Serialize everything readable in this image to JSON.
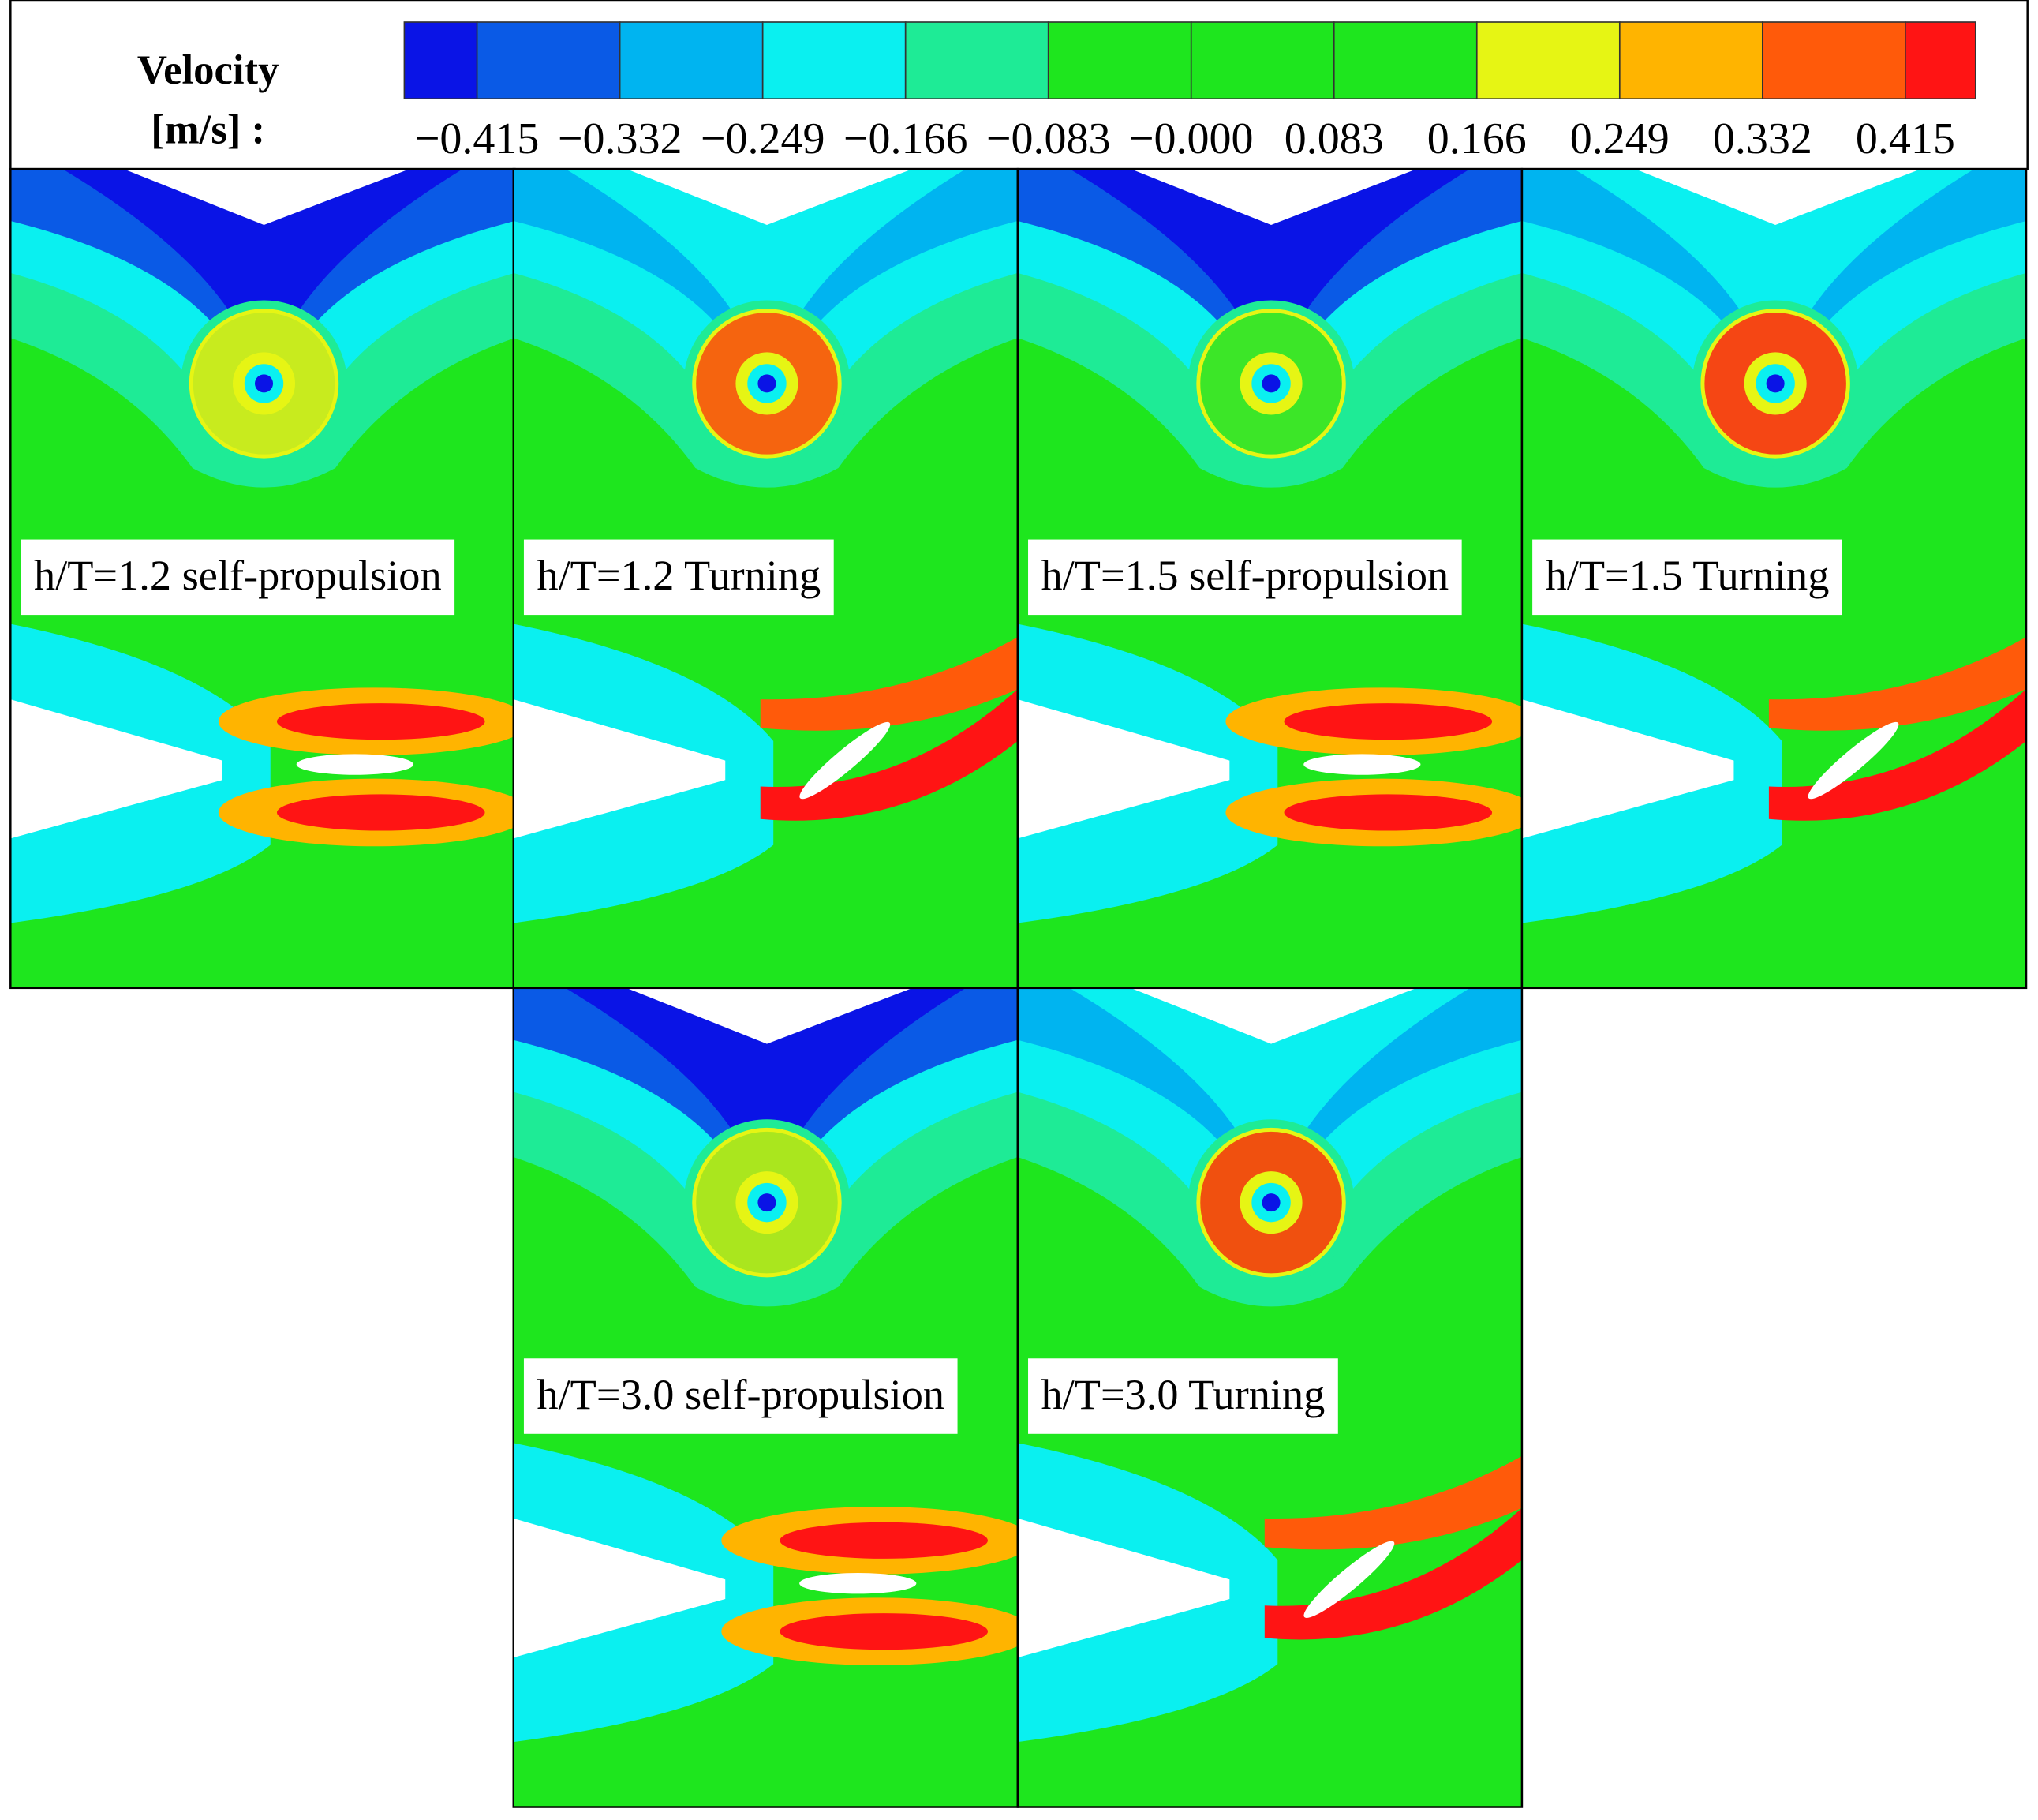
{
  "legend": {
    "title": [
      "Velocity",
      "[m/s] :"
    ],
    "ticks": [
      "−0.415",
      "−0.332",
      "−0.249",
      "−0.166",
      "−0.083",
      "−0.000",
      "0.083",
      "0.166",
      "0.249",
      "0.332",
      "0.415"
    ],
    "colors": [
      "#0a14e6",
      "#0a5ae6",
      "#00b4f0",
      "#0af0f0",
      "#1eeb96",
      "#1ee61e",
      "#1ee61e",
      "#1ee61e",
      "#e6f514",
      "#ffb400",
      "#ff5a0a",
      "#ff1414"
    ]
  },
  "panels": [
    {
      "label": "h/T=1.2 self-propulsion",
      "ring": "#c8eb1e"
    },
    {
      "label": "h/T=1.2 Turning",
      "ring": "#f5640f"
    },
    {
      "label": "h/T=1.5 self-propulsion",
      "ring": "#3ce628"
    },
    {
      "label": "h/T=1.5 Turning",
      "ring": "#f54614"
    },
    {
      "label": "h/T=3.0 self-propulsion",
      "ring": "#aae61e"
    },
    {
      "label": "h/T=3.0 Turning",
      "ring": "#f0500f"
    }
  ]
}
